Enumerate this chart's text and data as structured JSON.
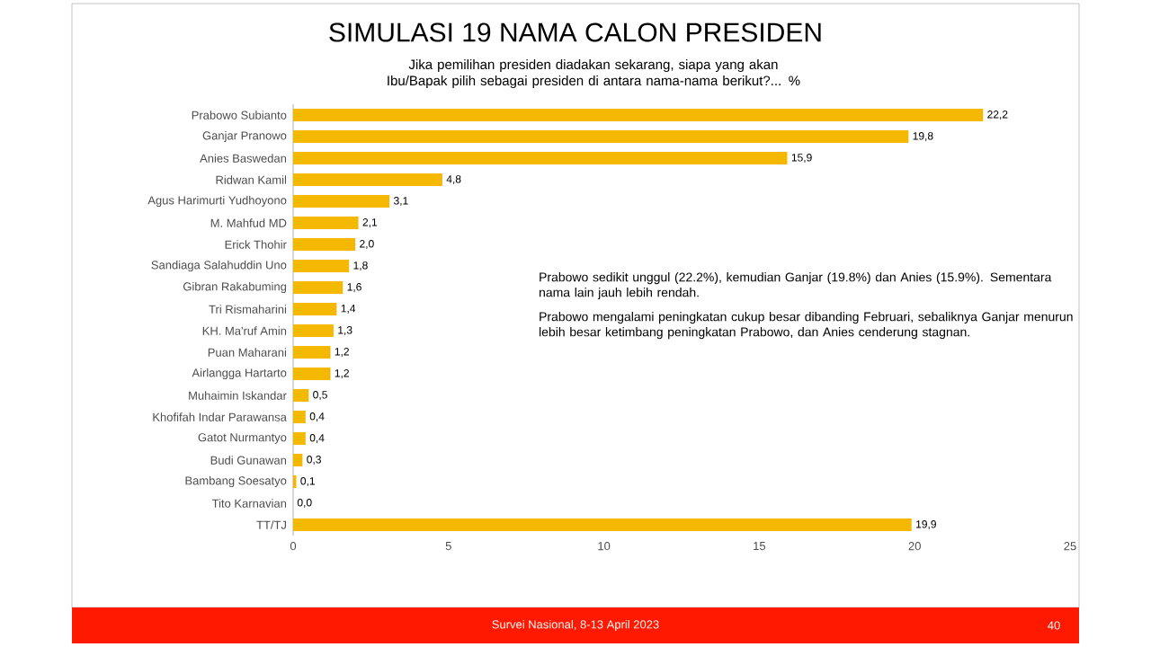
{
  "chart_data": {
    "type": "bar",
    "orientation": "horizontal",
    "title": "SIMULASI 19 NAMA CALON PRESIDEN",
    "subtitle": "Jika pemilihan presiden diadakan sekarang, siapa yang akan Ibu/Bapak pilih sebagai presiden di antara nama-nama berikut?... %",
    "categories": [
      "Prabowo Subianto",
      "Ganjar Pranowo",
      "Anies Baswedan",
      "Ridwan Kamil",
      "Agus Harimurti Yudhoyono",
      "M. Mahfud MD",
      "Erick Thohir",
      "Sandiaga Salahuddin Uno",
      "Gibran Rakabuming",
      "Tri Rismaharini",
      "KH. Ma'ruf Amin",
      "Puan Maharani",
      "Airlangga Hartarto",
      "Muhaimin Iskandar",
      "Khofifah Indar Parawansa",
      "Gatot Nurmantyo",
      "Budi Gunawan",
      "Bambang Soesatyo",
      "Tito Karnavian",
      "TT/TJ"
    ],
    "values": [
      22.2,
      19.8,
      15.9,
      4.8,
      3.1,
      2.1,
      2.0,
      1.8,
      1.6,
      1.4,
      1.3,
      1.2,
      1.2,
      0.5,
      0.4,
      0.4,
      0.3,
      0.1,
      0.0,
      19.9
    ],
    "value_labels": [
      "22,2",
      "19,8",
      "15,9",
      "4,8",
      "3,1",
      "2,1",
      "2,0",
      "1,8",
      "1,6",
      "1,4",
      "1,3",
      "1,2",
      "1,2",
      "0,5",
      "0,4",
      "0,4",
      "0,3",
      "0,1",
      "0,0",
      "19,9"
    ],
    "color": "#f5b800",
    "xlim": [
      0,
      25
    ],
    "xticks": [
      0,
      5,
      10,
      15,
      20,
      25
    ],
    "grid": false,
    "annotations": [
      "Prabowo sedikit unggul (22.2%), kemudian Ganjar (19.8%) dan Anies (15.9%). Sementara nama lain jauh lebih rendah.",
      "Prabowo mengalami peningkatan cukup besar dibanding Februari, sebaliknya Ganjar menurun lebih besar ketimbang peningkatan Prabowo, dan Anies cenderung stagnan.",
      "Survei Nasional, 8-13 April 2023",
      "40"
    ]
  }
}
